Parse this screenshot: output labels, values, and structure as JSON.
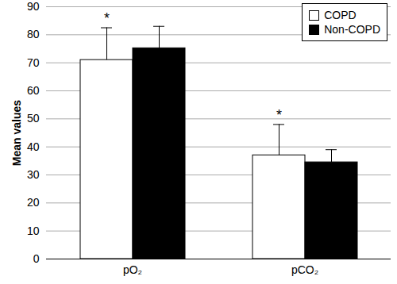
{
  "chart_data": {
    "type": "bar",
    "categories": [
      "pO₂",
      "pCO₂"
    ],
    "y_label": "Mean values",
    "series": [
      {
        "name": "COPD",
        "color": "#ffffff",
        "values": [
          71,
          37
        ],
        "errors": [
          11.5,
          11
        ]
      },
      {
        "name": "Non-COPD",
        "color": "#000000",
        "values": [
          75.2,
          34.5
        ],
        "errors": [
          7.8,
          4.5
        ]
      }
    ],
    "ylim": [
      0,
      90
    ],
    "yticks": [
      0,
      10,
      20,
      30,
      40,
      50,
      60,
      70,
      80,
      90
    ],
    "grid": true,
    "legend": "top-right",
    "annotations": [
      {
        "text": "*",
        "category": "pO₂",
        "series": "COPD"
      },
      {
        "text": "*",
        "category": "pCO₂",
        "series": "COPD"
      }
    ]
  }
}
